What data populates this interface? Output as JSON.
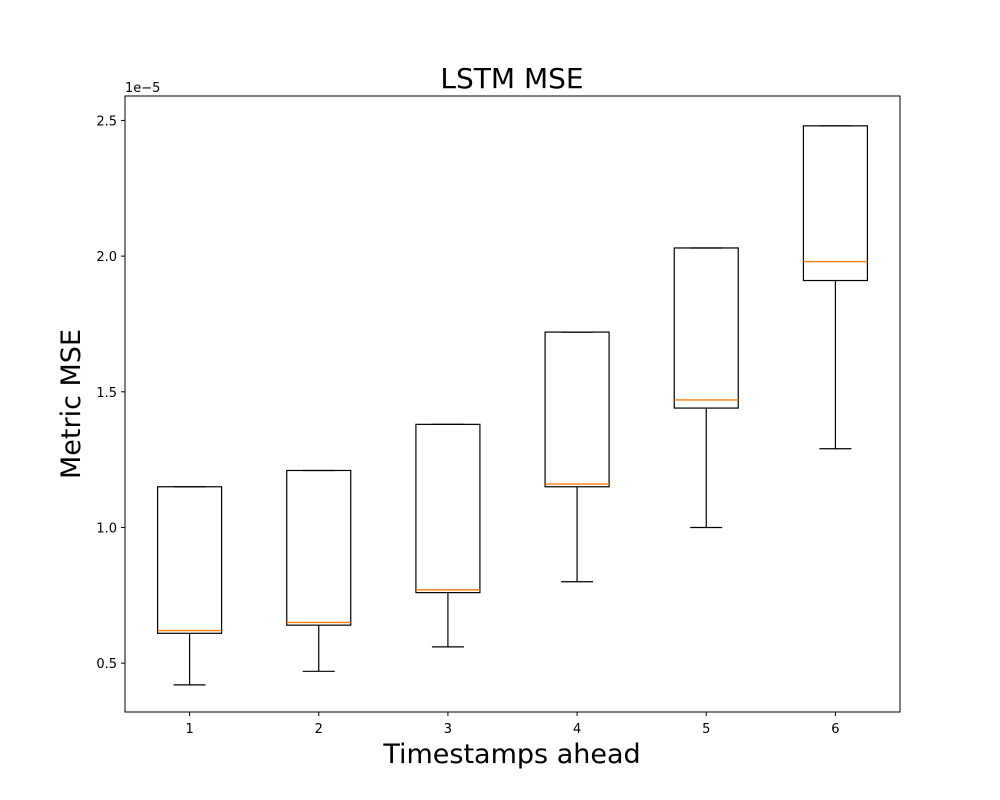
{
  "chart_data": {
    "type": "box",
    "title": "LSTM MSE",
    "xlabel": "Timestamps ahead",
    "ylabel": "Metric MSE",
    "y_scale_label": "1e−5",
    "categories": [
      "1",
      "2",
      "3",
      "4",
      "5",
      "6"
    ],
    "y_ticks": [
      "0.5",
      "1.0",
      "1.5",
      "2.0",
      "2.5"
    ],
    "ylim": [
      0.32,
      2.59
    ],
    "y_unit_multiplier": 1e-05,
    "grid": false,
    "legend": "none",
    "boxes": [
      {
        "category": "1",
        "whisker_low": 0.42,
        "q1": 0.61,
        "median": 0.62,
        "q3": 1.15,
        "whisker_high": 1.15
      },
      {
        "category": "2",
        "whisker_low": 0.47,
        "q1": 0.64,
        "median": 0.65,
        "q3": 1.21,
        "whisker_high": 1.21
      },
      {
        "category": "3",
        "whisker_low": 0.56,
        "q1": 0.76,
        "median": 0.77,
        "q3": 1.38,
        "whisker_high": 1.38
      },
      {
        "category": "4",
        "whisker_low": 0.8,
        "q1": 1.15,
        "median": 1.16,
        "q3": 1.72,
        "whisker_high": 1.72
      },
      {
        "category": "5",
        "whisker_low": 1.0,
        "q1": 1.44,
        "median": 1.47,
        "q3": 2.03,
        "whisker_high": 2.03
      },
      {
        "category": "6",
        "whisker_low": 1.29,
        "q1": 1.91,
        "median": 1.98,
        "q3": 2.48,
        "whisker_high": 2.48
      }
    ],
    "colors": {
      "box": "#000000",
      "median": "#ff7f0e",
      "background": "#ffffff"
    }
  }
}
